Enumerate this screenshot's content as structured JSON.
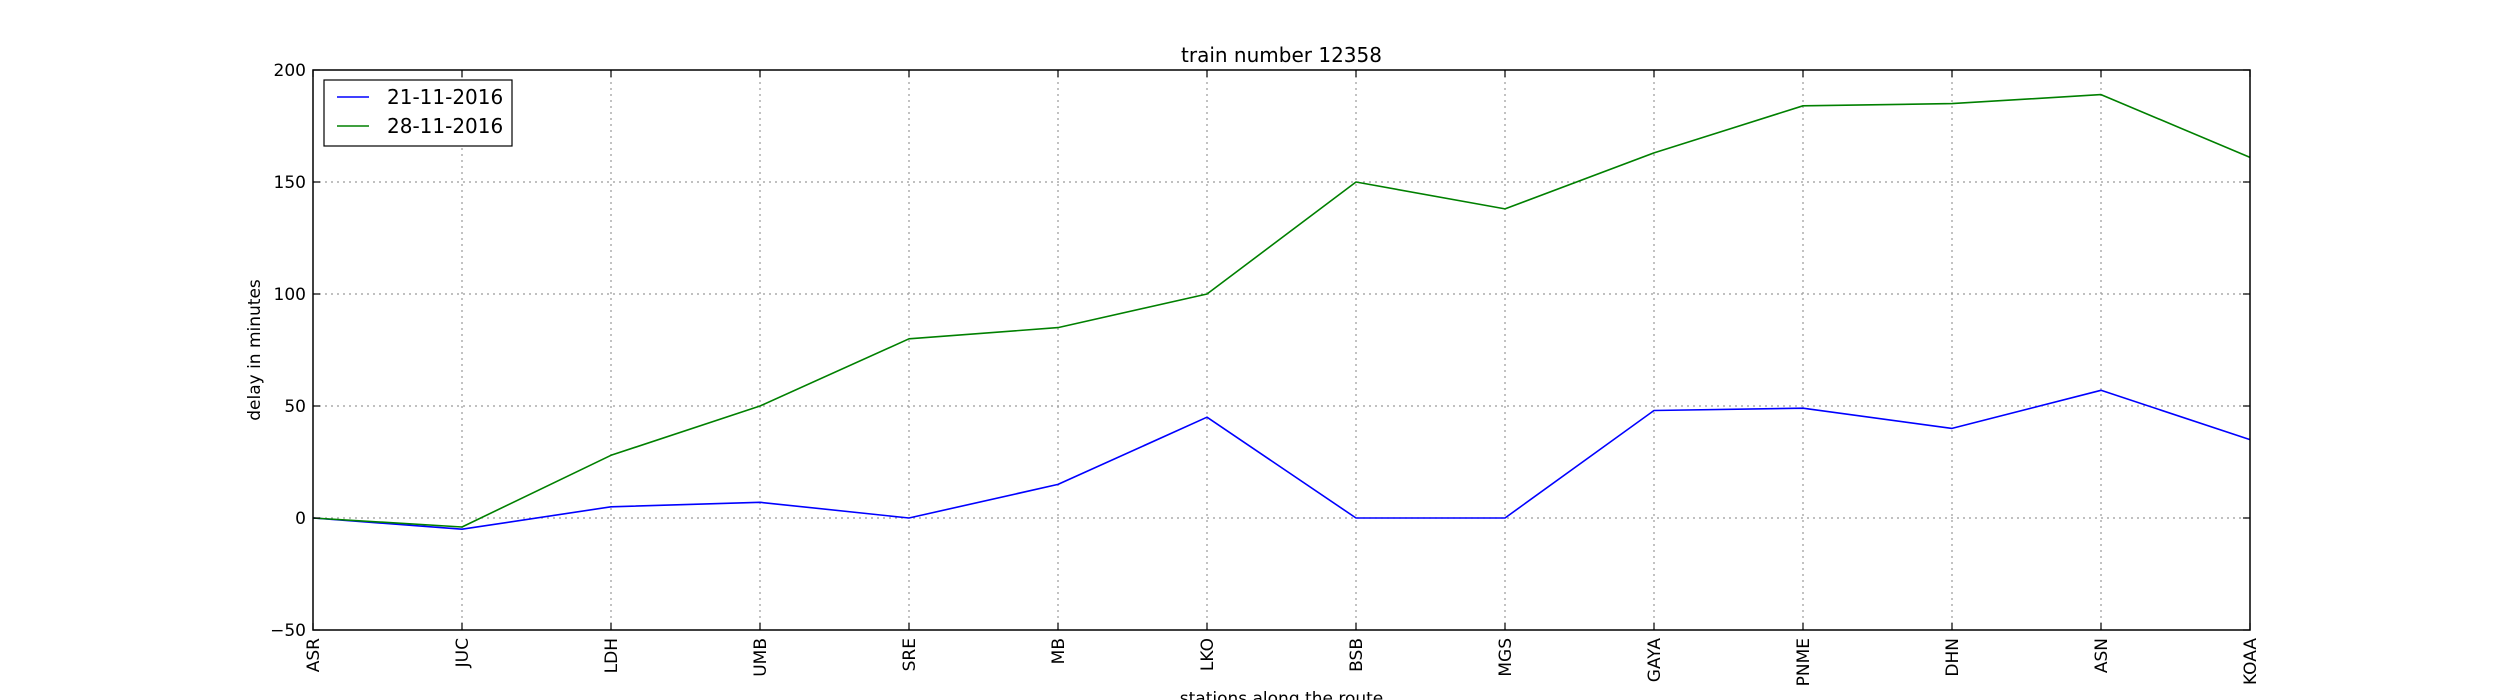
{
  "chart_data": {
    "type": "line",
    "title": "train number 12358",
    "xlabel": "stations along the route",
    "ylabel": "delay in minutes",
    "categories": [
      "ASR",
      "JUC",
      "LDH",
      "UMB",
      "SRE",
      "MB",
      "LKO",
      "BSB",
      "MGS",
      "GAYA",
      "PNME",
      "DHN",
      "ASN",
      "KOAA"
    ],
    "ylim": [
      -50,
      200
    ],
    "yticks": [
      -50,
      0,
      50,
      100,
      150,
      200
    ],
    "grid": true,
    "legend_position": "top-left",
    "series": [
      {
        "name": "21-11-2016",
        "color": "#0000ff",
        "values": [
          0,
          -5,
          5,
          7,
          0,
          15,
          45,
          0,
          0,
          48,
          49,
          40,
          57,
          35
        ]
      },
      {
        "name": "28-11-2016",
        "color": "#008000",
        "values": [
          0,
          -4,
          28,
          50,
          80,
          85,
          100,
          150,
          138,
          163,
          184,
          185,
          189,
          161
        ]
      }
    ]
  }
}
